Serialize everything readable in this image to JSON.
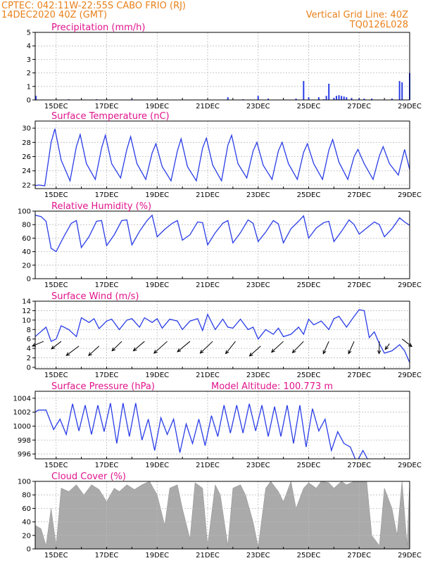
{
  "header": {
    "line1_left": "CPTEC:   042:11W-22:55S   CABO FRIO (RJ)",
    "line2_left": "14DEC2020  40Z (GMT)",
    "line1_right": "Vertical Grid Line: 40Z",
    "line2_right": "TQ0126L028"
  },
  "colors": {
    "header": "#e8801a",
    "title": "#e0148c",
    "line": "#2a3de6",
    "cloud": "#aaaaaa"
  },
  "chart_data": [
    {
      "type": "bar",
      "title": "Precipitation (mm/h)",
      "ylim": [
        0,
        5
      ],
      "yticks": [
        0,
        1,
        2,
        3,
        4,
        5
      ],
      "xlim": [
        14.17,
        29
      ],
      "xticks": [
        15,
        17,
        19,
        21,
        23,
        25,
        27,
        29
      ],
      "xtick_labels": [
        "15DEC",
        "17DEC",
        "19DEC",
        "21DEC",
        "23DEC",
        "25DEC",
        "27DEC",
        "29DEC"
      ],
      "x": [
        14.2,
        15.5,
        16.6,
        18.0,
        21.8,
        22.4,
        23.0,
        23.4,
        24.5,
        24.8,
        25.0,
        25.4,
        25.6,
        25.7,
        25.8,
        26.0,
        26.1,
        26.2,
        26.3,
        26.4,
        26.5,
        26.7,
        27.0,
        27.2,
        27.5,
        28.3,
        28.6,
        28.7,
        29.0
      ],
      "values": [
        0.3,
        0.05,
        0.05,
        0.05,
        0.2,
        0.05,
        0.3,
        0.1,
        0.1,
        1.4,
        0.2,
        0.2,
        0.05,
        0.3,
        1.2,
        0.15,
        0.3,
        0.35,
        0.3,
        0.25,
        0.2,
        0.15,
        0.1,
        0.1,
        0.1,
        0.1,
        1.4,
        1.3,
        2.0
      ]
    },
    {
      "type": "line",
      "title": "Surface Temperature (nC)",
      "ylim": [
        21.5,
        31
      ],
      "yticks": [
        22,
        24,
        26,
        28,
        30
      ],
      "xlim": [
        14.17,
        29
      ],
      "xticks": [
        15,
        17,
        19,
        21,
        23,
        25,
        27,
        29
      ],
      "xtick_labels": [
        "15DEC",
        "17DEC",
        "19DEC",
        "21DEC",
        "23DEC",
        "25DEC",
        "27DEC",
        "29DEC"
      ],
      "x": [
        14.17,
        14.3,
        14.55,
        14.8,
        14.95,
        15.2,
        15.55,
        15.8,
        15.95,
        16.2,
        16.55,
        16.8,
        16.95,
        17.2,
        17.55,
        17.8,
        17.95,
        18.2,
        18.55,
        18.8,
        18.95,
        19.2,
        19.55,
        19.8,
        19.95,
        20.2,
        20.55,
        20.8,
        20.95,
        21.2,
        21.55,
        21.8,
        21.95,
        22.2,
        22.55,
        22.8,
        22.95,
        23.2,
        23.55,
        23.8,
        23.95,
        24.2,
        24.55,
        24.8,
        24.95,
        25.2,
        25.55,
        25.8,
        25.95,
        26.2,
        26.55,
        26.8,
        26.95,
        27.2,
        27.55,
        27.8,
        27.95,
        28.2,
        28.55,
        28.8,
        29.0
      ],
      "values": [
        21.9,
        22.0,
        21.9,
        28.0,
        29.9,
        25.5,
        22.6,
        27.4,
        29.1,
        25.0,
        22.8,
        27.2,
        29.0,
        25.0,
        23.0,
        27.0,
        28.8,
        25.0,
        22.8,
        26.5,
        27.8,
        24.6,
        22.6,
        26.8,
        28.5,
        24.6,
        22.6,
        27.2,
        28.6,
        24.8,
        22.6,
        27.6,
        29.0,
        25.0,
        23.0,
        26.8,
        28.0,
        24.8,
        22.8,
        26.8,
        28.0,
        25.0,
        22.8,
        26.6,
        27.8,
        25.0,
        22.8,
        26.9,
        28.4,
        25.2,
        22.8,
        26.0,
        27.0,
        25.0,
        22.8,
        26.1,
        27.4,
        25.0,
        23.4,
        27.0,
        24.2
      ]
    },
    {
      "type": "line",
      "title": "Relative Humidity (%)",
      "ylim": [
        0,
        100
      ],
      "yticks": [
        0,
        20,
        40,
        60,
        80,
        100
      ],
      "xlim": [
        14.17,
        29
      ],
      "xticks": [
        15,
        17,
        19,
        21,
        23,
        25,
        27,
        29
      ],
      "xtick_labels": [
        "15DEC",
        "17DEC",
        "19DEC",
        "21DEC",
        "23DEC",
        "25DEC",
        "27DEC",
        "29DEC"
      ],
      "x": [
        14.17,
        14.4,
        14.6,
        14.8,
        15.0,
        15.3,
        15.6,
        15.8,
        16.0,
        16.3,
        16.6,
        16.8,
        17.0,
        17.3,
        17.6,
        17.8,
        18.0,
        18.3,
        18.6,
        18.8,
        19.0,
        19.3,
        19.6,
        19.8,
        20.0,
        20.3,
        20.6,
        20.8,
        21.0,
        21.3,
        21.6,
        21.8,
        22.0,
        22.3,
        22.6,
        22.8,
        23.0,
        23.3,
        23.6,
        23.8,
        24.0,
        24.3,
        24.6,
        24.8,
        25.0,
        25.3,
        25.6,
        25.8,
        26.0,
        26.3,
        26.6,
        26.8,
        27.0,
        27.3,
        27.6,
        27.8,
        28.0,
        28.3,
        28.6,
        28.8,
        29.0
      ],
      "values": [
        94,
        92,
        85,
        45,
        40,
        62,
        82,
        86,
        46,
        62,
        85,
        86,
        49,
        65,
        86,
        87,
        50,
        70,
        86,
        94,
        62,
        73,
        82,
        86,
        57,
        65,
        84,
        83,
        50,
        68,
        82,
        86,
        53,
        68,
        87,
        82,
        55,
        69,
        86,
        81,
        53,
        74,
        85,
        93,
        60,
        75,
        83,
        85,
        55,
        70,
        87,
        80,
        66,
        75,
        84,
        80,
        62,
        74,
        90,
        84,
        79
      ]
    },
    {
      "type": "line",
      "title": "Surface Wind (m/s)",
      "ylim": [
        -0.3,
        14
      ],
      "yticks": [
        0,
        2,
        4,
        6,
        8,
        10,
        12,
        14
      ],
      "xlim": [
        14.17,
        29
      ],
      "xticks": [
        15,
        17,
        19,
        21,
        23,
        25,
        27,
        29
      ],
      "xtick_labels": [
        "15DEC",
        "17DEC",
        "19DEC",
        "21DEC",
        "23DEC",
        "25DEC",
        "27DEC",
        "29DEC"
      ],
      "x": [
        14.17,
        14.6,
        14.8,
        15.0,
        15.2,
        15.5,
        15.8,
        16.0,
        16.3,
        16.5,
        16.7,
        17.0,
        17.2,
        17.5,
        17.8,
        18.0,
        18.3,
        18.5,
        18.8,
        19.0,
        19.2,
        19.5,
        19.8,
        20.0,
        20.3,
        20.6,
        20.8,
        21.0,
        21.3,
        21.6,
        21.8,
        22.0,
        22.3,
        22.6,
        22.8,
        23.0,
        23.3,
        23.6,
        23.8,
        24.0,
        24.3,
        24.6,
        24.8,
        25.0,
        25.2,
        25.5,
        25.8,
        26.0,
        26.2,
        26.5,
        26.8,
        27.0,
        27.2,
        27.4,
        27.6,
        27.8,
        28.0,
        28.3,
        28.6,
        28.8,
        29.0
      ],
      "values": [
        6.5,
        8.5,
        5.5,
        6.0,
        8.8,
        8.0,
        6.5,
        10.5,
        9.5,
        10.3,
        8.2,
        9.8,
        10.2,
        8.0,
        10.0,
        10.3,
        8.5,
        10.5,
        9.5,
        10.3,
        8.3,
        10.2,
        9.8,
        8.0,
        9.8,
        10.3,
        7.8,
        11.2,
        8.0,
        10.2,
        8.5,
        8.3,
        10.2,
        8.0,
        8.5,
        6.0,
        8.0,
        7.0,
        8.3,
        6.5,
        7.0,
        8.5,
        7.0,
        10.2,
        9.0,
        9.8,
        8.0,
        10.3,
        10.8,
        8.5,
        10.8,
        12.2,
        12.0,
        6.3,
        7.5,
        5.0,
        3.0,
        3.5,
        4.8,
        3.5,
        1.0
      ],
      "arrows": {
        "x": [
          14.5,
          15.2,
          15.9,
          16.7,
          17.6,
          18.5,
          19.4,
          20.3,
          21.2,
          22.1,
          23.1,
          24.0,
          24.8,
          25.8,
          26.8,
          27.8,
          28.2,
          28.7
        ],
        "y": [
          5.5,
          5.5,
          4.5,
          4.5,
          5.5,
          5.5,
          5.5,
          5.5,
          5.5,
          5.5,
          4.5,
          5.5,
          5.5,
          5.5,
          5.5,
          5.5,
          5.0,
          6.0
        ],
        "dx": [
          0.8,
          0.7,
          0.9,
          0.75,
          0.7,
          0.8,
          0.95,
          0.9,
          0.9,
          0.7,
          0.8,
          0.85,
          0.8,
          0.4,
          0.4,
          0.02,
          0.3,
          -0.7
        ],
        "dy": [
          1.0,
          1.6,
          2.0,
          2.0,
          2.0,
          2.0,
          2.5,
          2.2,
          2.5,
          2.6,
          2.1,
          2.3,
          2.4,
          2.6,
          2.6,
          2.6,
          1.2,
          1.6
        ]
      }
    },
    {
      "type": "line",
      "title": "Surface Pressure (hPa)",
      "annotation": "Model Altitude: 100.773 m",
      "ylim": [
        995.3,
        1005
      ],
      "yticks": [
        996,
        998,
        1000,
        1002,
        1004
      ],
      "xlim": [
        14.17,
        29
      ],
      "xticks": [
        15,
        17,
        19,
        21,
        23,
        25,
        27,
        29
      ],
      "xtick_labels": [
        "15DEC",
        "17DEC",
        "19DEC",
        "21DEC",
        "23DEC",
        "25DEC",
        "27DEC",
        "29DEC"
      ],
      "x": [
        14.17,
        14.3,
        14.6,
        14.9,
        15.15,
        15.4,
        15.65,
        15.9,
        16.15,
        16.4,
        16.65,
        16.9,
        17.15,
        17.4,
        17.65,
        17.9,
        18.15,
        18.4,
        18.65,
        18.9,
        19.15,
        19.4,
        19.65,
        19.9,
        20.15,
        20.4,
        20.65,
        20.9,
        21.15,
        21.4,
        21.65,
        21.9,
        22.15,
        22.4,
        22.65,
        22.9,
        23.15,
        23.4,
        23.65,
        23.9,
        24.15,
        24.4,
        24.65,
        24.9,
        25.15,
        25.4,
        25.65,
        25.9,
        26.15,
        26.4,
        26.65,
        26.9,
        27.15,
        27.4
      ],
      "values": [
        1002.0,
        1002.3,
        1002.3,
        999.5,
        1001.0,
        998.8,
        1003.2,
        999.3,
        1003.0,
        998.8,
        1003.0,
        999.2,
        1003.3,
        997.5,
        1003.3,
        998.5,
        1003.3,
        998.0,
        1001.0,
        996.5,
        1001.2,
        998.8,
        1001.0,
        996.2,
        1000.3,
        997.5,
        1001.0,
        997.2,
        1001.5,
        998.5,
        1003.0,
        999.0,
        1003.0,
        999.0,
        1003.2,
        999.3,
        1003.0,
        998.5,
        1002.8,
        998.5,
        1003.0,
        997.5,
        1003.0,
        997.0,
        1002.5,
        999.3,
        1001.0,
        996.5,
        999.2,
        997.5,
        997.0,
        994.8,
        996.5,
        994.8
      ]
    },
    {
      "type": "area",
      "title": "Cloud Cover (%)",
      "ylim": [
        0,
        100
      ],
      "yticks": [
        0,
        20,
        40,
        60,
        80,
        100
      ],
      "xlim": [
        14.17,
        29
      ],
      "xticks": [
        15,
        17,
        19,
        21,
        23,
        25,
        27,
        29
      ],
      "xtick_labels": [
        "15DEC",
        "17DEC",
        "19DEC",
        "21DEC",
        "23DEC",
        "25DEC",
        "27DEC",
        "29DEC"
      ],
      "x": [
        14.17,
        14.4,
        14.6,
        14.8,
        15.0,
        15.2,
        15.5,
        15.8,
        16.1,
        16.4,
        16.7,
        17.0,
        17.3,
        17.5,
        17.8,
        18.1,
        18.4,
        18.7,
        19.0,
        19.3,
        19.5,
        19.8,
        20.0,
        20.3,
        20.5,
        20.8,
        21.0,
        21.3,
        21.5,
        21.8,
        22.0,
        22.3,
        22.5,
        22.8,
        23.0,
        23.3,
        23.5,
        23.8,
        24.0,
        24.3,
        24.5,
        24.8,
        25.0,
        25.3,
        25.5,
        25.8,
        26.0,
        26.3,
        26.5,
        26.8,
        27.0,
        27.3,
        27.5,
        27.8,
        28.0,
        28.3,
        28.5,
        28.7,
        28.9,
        29.0
      ],
      "values": [
        35,
        30,
        5,
        60,
        5,
        90,
        85,
        95,
        80,
        95,
        88,
        70,
        90,
        85,
        95,
        88,
        95,
        100,
        80,
        35,
        90,
        95,
        60,
        15,
        98,
        90,
        5,
        95,
        80,
        5,
        90,
        95,
        80,
        40,
        3,
        90,
        100,
        85,
        70,
        100,
        60,
        90,
        98,
        90,
        100,
        98,
        90,
        100,
        95,
        100,
        100,
        100,
        20,
        5,
        90,
        60,
        20,
        100,
        5,
        100
      ]
    }
  ]
}
